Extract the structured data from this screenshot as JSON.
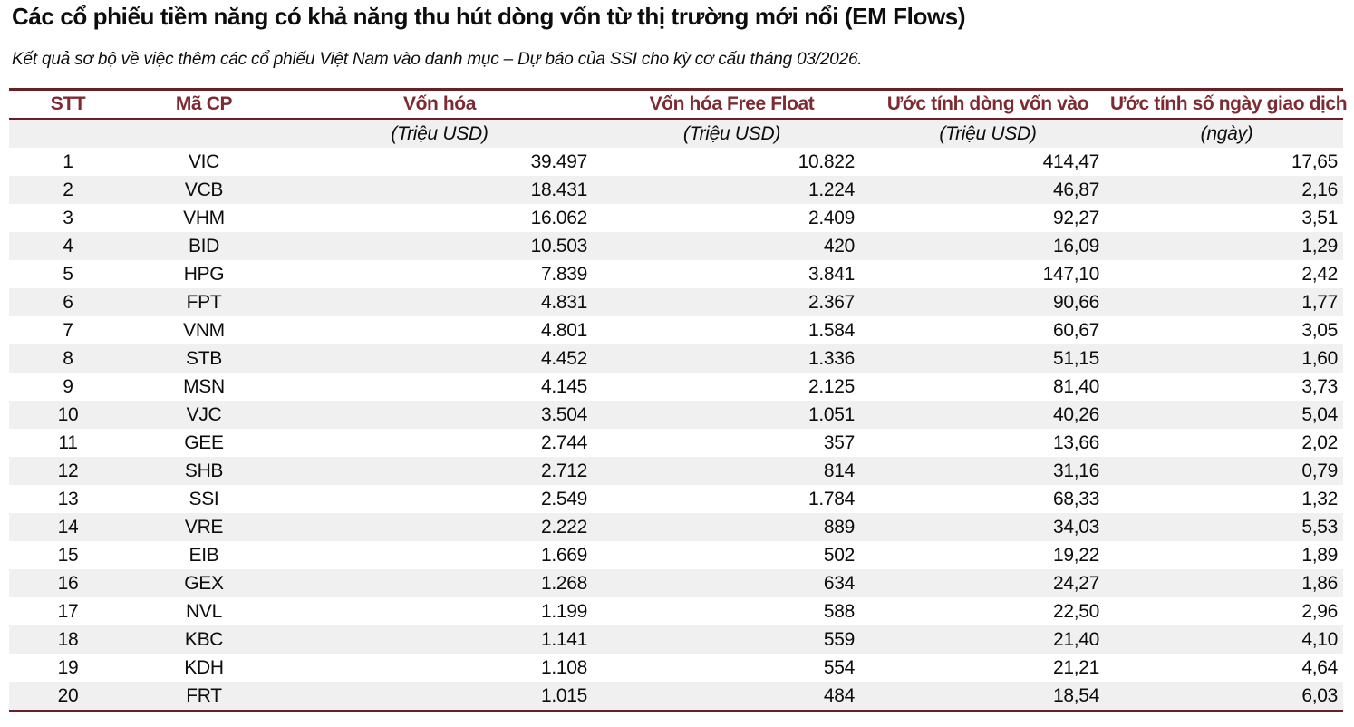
{
  "title": "Các cổ phiếu tiềm năng có khả năng thu hút dòng vốn từ thị trường mới nổi (EM Flows)",
  "subtitle": "Kết quả sơ bộ về việc thêm các cổ phiếu Việt Nam vào danh mục – Dự báo của SSI cho kỳ cơ cấu tháng 03/2026.",
  "colors": {
    "accent": "#7d2a31",
    "border": "#6b2027",
    "stripe": "#f0f0f0"
  },
  "chart_data": {
    "type": "table",
    "title": "Các cổ phiếu tiềm năng có khả năng thu hút dòng vốn từ thị trường mới nổi (EM Flows)",
    "subtitle": "Kết quả sơ bộ về việc thêm các cổ phiếu Việt Nam vào danh mục – Dự báo của SSI cho kỳ cơ cấu tháng 03/2026.",
    "columns": [
      {
        "label": "STT",
        "unit": ""
      },
      {
        "label": "Mã CP",
        "unit": ""
      },
      {
        "label": "Vốn hóa",
        "unit": "(Triệu USD)"
      },
      {
        "label": "Vốn hóa Free Float",
        "unit": "(Triệu USD)"
      },
      {
        "label": "Ước tính dòng vốn vào",
        "unit": "(Triệu USD)"
      },
      {
        "label": "Ước tính số ngày giao dịch",
        "unit": "(ngày)"
      }
    ],
    "rows": [
      [
        "1",
        "VIC",
        "39.497",
        "10.822",
        "414,47",
        "17,65"
      ],
      [
        "2",
        "VCB",
        "18.431",
        "1.224",
        "46,87",
        "2,16"
      ],
      [
        "3",
        "VHM",
        "16.062",
        "2.409",
        "92,27",
        "3,51"
      ],
      [
        "4",
        "BID",
        "10.503",
        "420",
        "16,09",
        "1,29"
      ],
      [
        "5",
        "HPG",
        "7.839",
        "3.841",
        "147,10",
        "2,42"
      ],
      [
        "6",
        "FPT",
        "4.831",
        "2.367",
        "90,66",
        "1,77"
      ],
      [
        "7",
        "VNM",
        "4.801",
        "1.584",
        "60,67",
        "3,05"
      ],
      [
        "8",
        "STB",
        "4.452",
        "1.336",
        "51,15",
        "1,60"
      ],
      [
        "9",
        "MSN",
        "4.145",
        "2.125",
        "81,40",
        "3,73"
      ],
      [
        "10",
        "VJC",
        "3.504",
        "1.051",
        "40,26",
        "5,04"
      ],
      [
        "11",
        "GEE",
        "2.744",
        "357",
        "13,66",
        "2,02"
      ],
      [
        "12",
        "SHB",
        "2.712",
        "814",
        "31,16",
        "0,79"
      ],
      [
        "13",
        "SSI",
        "2.549",
        "1.784",
        "68,33",
        "1,32"
      ],
      [
        "14",
        "VRE",
        "2.222",
        "889",
        "34,03",
        "5,53"
      ],
      [
        "15",
        "EIB",
        "1.669",
        "502",
        "19,22",
        "1,89"
      ],
      [
        "16",
        "GEX",
        "1.268",
        "634",
        "24,27",
        "1,86"
      ],
      [
        "17",
        "NVL",
        "1.199",
        "588",
        "22,50",
        "2,96"
      ],
      [
        "18",
        "KBC",
        "1.141",
        "559",
        "21,40",
        "4,10"
      ],
      [
        "19",
        "KDH",
        "1.108",
        "554",
        "21,21",
        "4,64"
      ],
      [
        "20",
        "FRT",
        "1.015",
        "484",
        "18,54",
        "6,03"
      ]
    ]
  }
}
